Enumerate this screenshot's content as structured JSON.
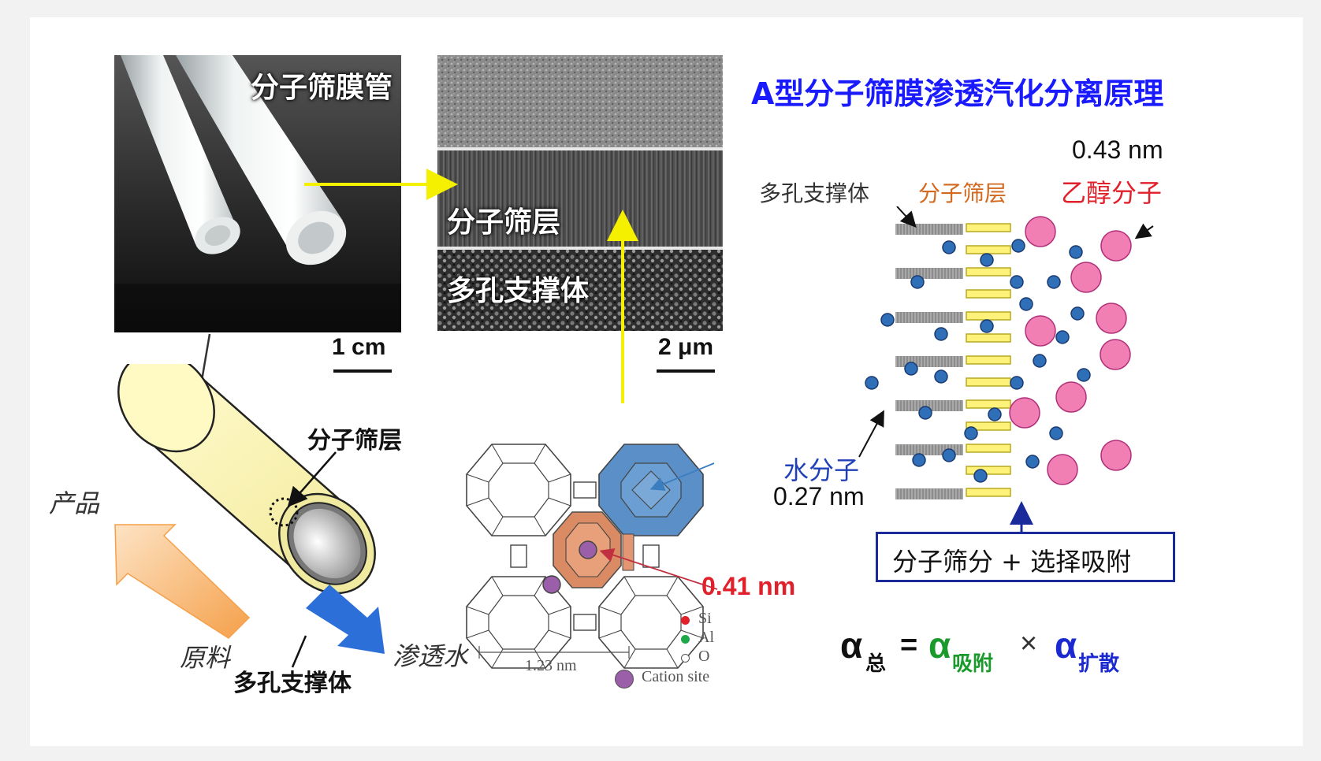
{
  "photo": {
    "tube_label": "分子筛膜管",
    "scale_bar": "1 cm"
  },
  "sem": {
    "membrane_layer_label": "分子筛层",
    "support_label": "多孔支撑体",
    "scale_bar": "2 μm"
  },
  "cylinder": {
    "membrane_layer_label": "分子筛层",
    "product_label": "产品",
    "feed_label": "原料",
    "support_label": "多孔支撑体",
    "permeate_label": "渗透水"
  },
  "zeolite": {
    "pore_size": "0.41 nm",
    "cell_size": "1.23 nm",
    "legend": [
      {
        "label": "Si",
        "color": "#e0202a"
      },
      {
        "label": "Al",
        "color": "#1fa84a"
      },
      {
        "label": "O",
        "color": "#ffffff"
      },
      {
        "label": "Cation site",
        "color": "#9b5ea8"
      }
    ]
  },
  "principle": {
    "title": "A型分子筛膜渗透汽化分离原理",
    "ethanol_size": "0.43 nm",
    "support_label": "多孔支撑体",
    "layer_label": "分子筛层",
    "ethanol_label": "乙醇分子",
    "water_label": "水分子",
    "water_size": "0.27 nm",
    "mechanism": "分子筛分 + 选择吸附",
    "formula": {
      "alpha": "α",
      "total_sub": "总",
      "equals": "=",
      "ads_sub": "吸附",
      "times": "×",
      "diff_sub": "扩散"
    }
  },
  "colors": {
    "title_blue": "#1a1aff",
    "orange_label": "#d2691e",
    "red_label": "#e0202a",
    "water_blue": "#2f6fb8",
    "ethanol_pink": "#f27fb4",
    "membrane_yellow": "#fff27a",
    "formula_green": "#1a9a2a"
  }
}
